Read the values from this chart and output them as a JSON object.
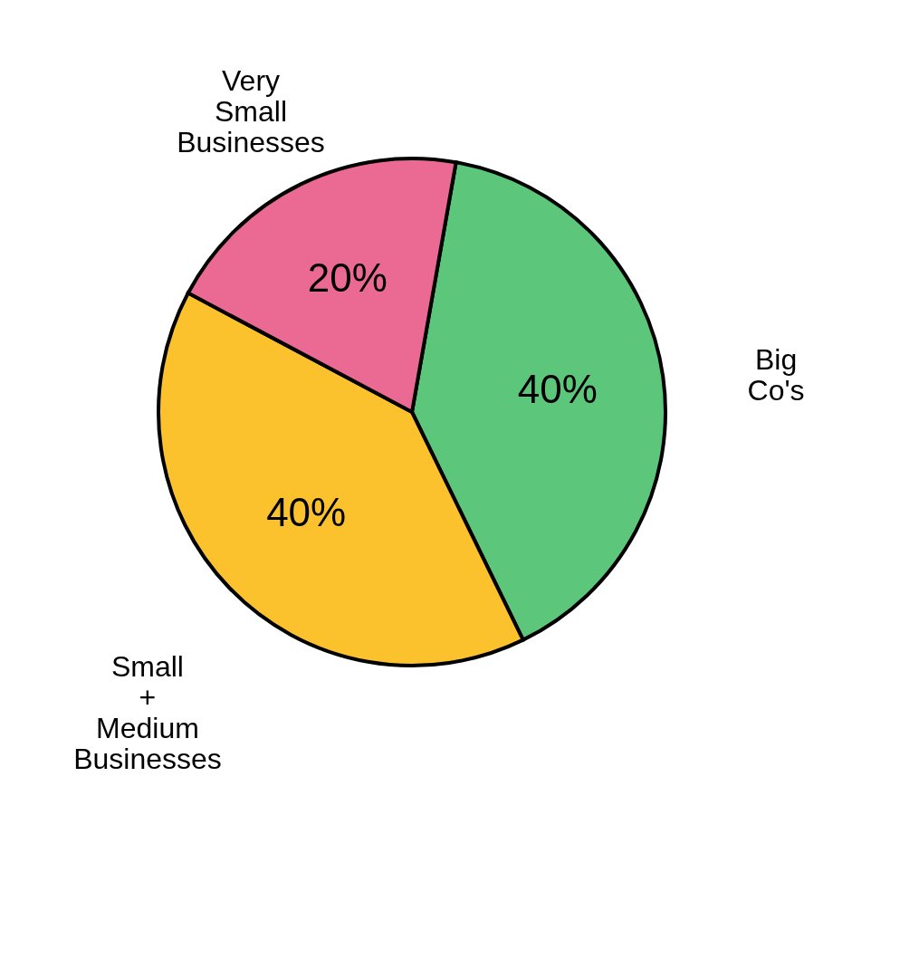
{
  "chart_data": {
    "type": "pie",
    "categories": [
      "Big Co's",
      "Small + Medium Businesses",
      "Very Small Businesses"
    ],
    "values": [
      40,
      40,
      20
    ],
    "colors": [
      "#5cc77a",
      "#fcc22e",
      "#eb6a93"
    ],
    "value_labels": [
      "40%",
      "40%",
      "20%"
    ],
    "legend": false
  }
}
